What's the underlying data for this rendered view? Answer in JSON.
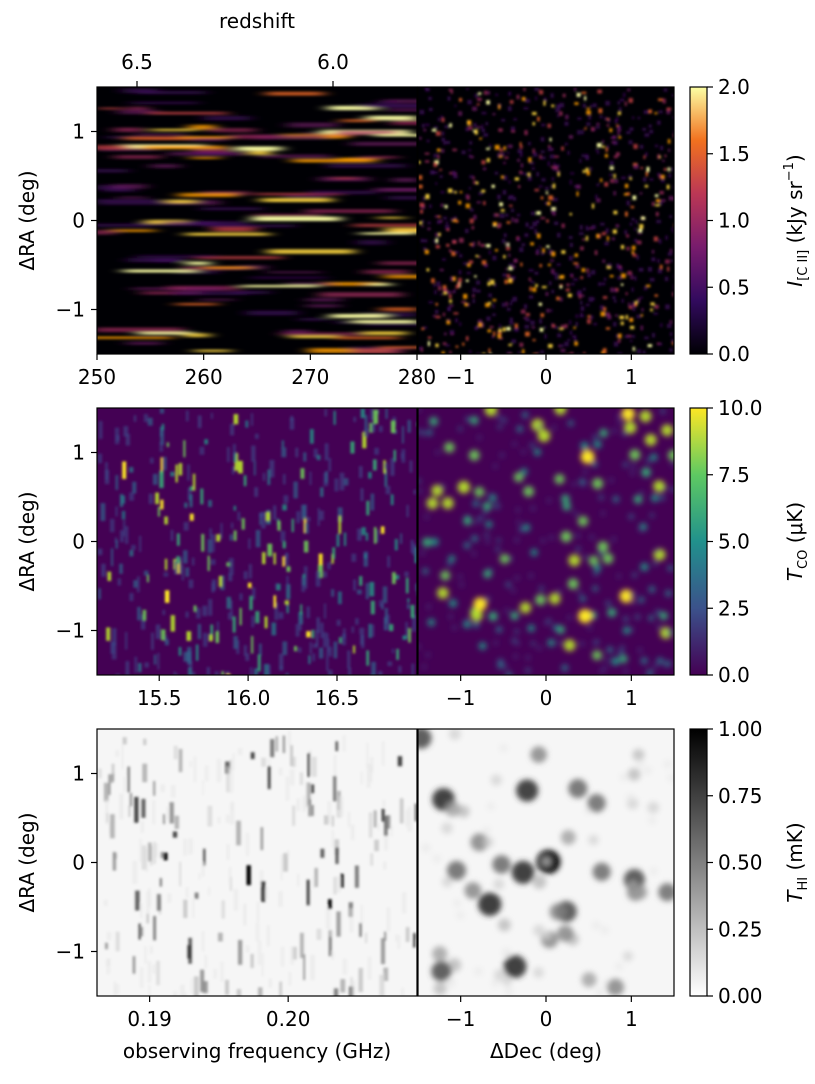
{
  "chart_data": [
    {
      "type": "heatmap",
      "panel": "cii-spectral",
      "colormap": "inferno",
      "x_ticks": [
        "250",
        "260",
        "270",
        "280"
      ],
      "x_range": [
        250,
        280
      ],
      "x_top_label": "redshift",
      "x_top_ticks": [
        "6.5",
        "6.0"
      ],
      "y_ticks": [
        "1",
        "0",
        "−1"
      ],
      "y_range": [
        -1.5,
        1.5
      ],
      "ylabel": "ΔRA (deg)"
    },
    {
      "type": "heatmap",
      "panel": "cii-spatial",
      "colormap": "inferno",
      "x_ticks": [
        "−1",
        "0",
        "1"
      ],
      "x_range": [
        -1.5,
        1.5
      ],
      "y_range": [
        -1.5,
        1.5
      ],
      "colorbar": {
        "label_main": "I",
        "label_sub": "[C II]",
        "label_unit": "(kJy sr",
        "label_exp": "−1",
        "label_close": ")",
        "range": [
          0.0,
          2.0
        ],
        "ticks": [
          "0.0",
          "0.5",
          "1.0",
          "1.5",
          "2.0"
        ]
      }
    },
    {
      "type": "heatmap",
      "panel": "co-spectral",
      "colormap": "viridis",
      "x_ticks": [
        "15.5",
        "16.0",
        "16.5"
      ],
      "x_range": [
        15.15,
        16.95
      ],
      "y_ticks": [
        "1",
        "0",
        "−1"
      ],
      "y_range": [
        -1.5,
        1.5
      ],
      "ylabel": "ΔRA (deg)"
    },
    {
      "type": "heatmap",
      "panel": "co-spatial",
      "colormap": "viridis",
      "x_ticks": [
        "−1",
        "0",
        "1"
      ],
      "x_range": [
        -1.5,
        1.5
      ],
      "y_range": [
        -1.5,
        1.5
      ],
      "colorbar": {
        "label_main": "T",
        "label_sub": "CO",
        "label_unit": "(μK)",
        "range": [
          0.0,
          10.0
        ],
        "ticks": [
          "0.0",
          "2.5",
          "5.0",
          "7.5",
          "10.0"
        ]
      }
    },
    {
      "type": "heatmap",
      "panel": "hi-spectral",
      "colormap": "gray_r",
      "x_ticks": [
        "0.19",
        "0.20"
      ],
      "x_range": [
        0.1862,
        0.2093
      ],
      "xlabel": "observing frequency (GHz)",
      "y_ticks": [
        "1",
        "0",
        "−1"
      ],
      "y_range": [
        -1.5,
        1.5
      ],
      "ylabel": "ΔRA (deg)"
    },
    {
      "type": "heatmap",
      "panel": "hi-spatial",
      "colormap": "gray_r",
      "x_ticks": [
        "−1",
        "0",
        "1"
      ],
      "x_range": [
        -1.5,
        1.5
      ],
      "xlabel": "ΔDec (deg)",
      "y_range": [
        -1.5,
        1.5
      ],
      "colorbar": {
        "label_main": "T",
        "label_sub": "HI",
        "label_unit": "(mK)",
        "range": [
          0.0,
          1.0
        ],
        "ticks": [
          "0.00",
          "0.25",
          "0.50",
          "0.75",
          "1.00"
        ]
      }
    }
  ]
}
